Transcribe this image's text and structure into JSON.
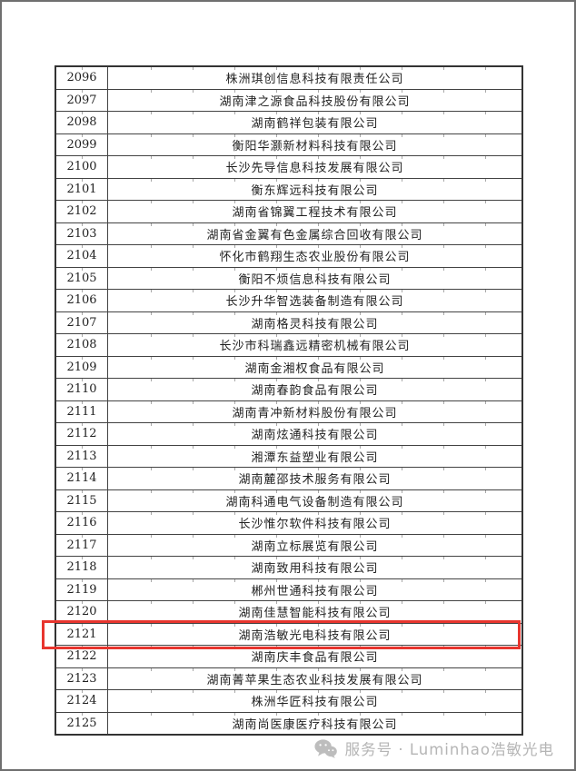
{
  "table": {
    "rows": [
      {
        "no": "2096",
        "company": "株洲琪创信息科技有限责任公司"
      },
      {
        "no": "2097",
        "company": "湖南津之源食品科技股份有限公司"
      },
      {
        "no": "2098",
        "company": "湖南鹤祥包装有限公司"
      },
      {
        "no": "2099",
        "company": "衡阳华灏新材料科技有限公司"
      },
      {
        "no": "2100",
        "company": "长沙先导信息科技发展有限公司"
      },
      {
        "no": "2101",
        "company": "衡东辉远科技有限公司"
      },
      {
        "no": "2102",
        "company": "湖南省锦翼工程技术有限公司"
      },
      {
        "no": "2103",
        "company": "湖南省金翼有色金属综合回收有限公司"
      },
      {
        "no": "2104",
        "company": "怀化市鹤翔生态农业股份有限公司"
      },
      {
        "no": "2105",
        "company": "衡阳不烦信息科技有限公司"
      },
      {
        "no": "2106",
        "company": "长沙升华智选装备制造有限公司"
      },
      {
        "no": "2107",
        "company": "湖南格灵科技有限公司"
      },
      {
        "no": "2108",
        "company": "长沙市科瑞鑫远精密机械有限公司"
      },
      {
        "no": "2109",
        "company": "湖南金湘权食品有限公司"
      },
      {
        "no": "2110",
        "company": "湖南春韵食品有限公司"
      },
      {
        "no": "2111",
        "company": "湖南青冲新材料股份有限公司"
      },
      {
        "no": "2112",
        "company": "湖南炫通科技有限公司"
      },
      {
        "no": "2113",
        "company": "湘潭东益塑业有限公司"
      },
      {
        "no": "2114",
        "company": "湖南麓邵技术服务有限公司"
      },
      {
        "no": "2115",
        "company": "湖南科通电气设备制造有限公司"
      },
      {
        "no": "2116",
        "company": "长沙惟尔软件科技有限公司"
      },
      {
        "no": "2117",
        "company": "湖南立标展览有限公司"
      },
      {
        "no": "2118",
        "company": "湖南致用科技有限公司"
      },
      {
        "no": "2119",
        "company": "郴州世通科技有限公司"
      },
      {
        "no": "2120",
        "company": "湖南佳慧智能科技有限公司"
      },
      {
        "no": "2121",
        "company": "湖南浩敏光电科技有限公司"
      },
      {
        "no": "2122",
        "company": "湖南庆丰食品有限公司"
      },
      {
        "no": "2123",
        "company": "湖南菁苹果生态农业科技发展有限公司"
      },
      {
        "no": "2124",
        "company": "株洲华匠科技有限公司"
      },
      {
        "no": "2125",
        "company": "湖南尚医康医疗科技有限公司"
      }
    ]
  },
  "highlight": {
    "row_no": "2121",
    "color": "#e8352e"
  },
  "footer": {
    "icon": "wechat-icon",
    "label": "服务号 · Luminhao浩敏光电",
    "color": "#b5b5b5"
  }
}
